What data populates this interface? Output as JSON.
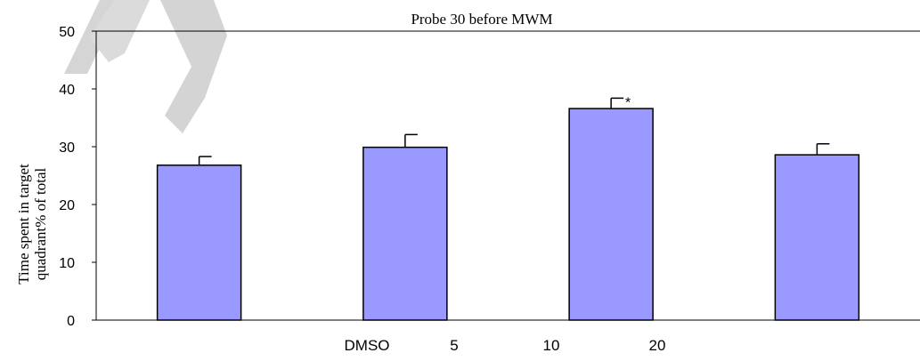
{
  "chart_data": {
    "type": "bar",
    "title": "Probe 30 before MWM",
    "ylabel_line1": "Time spent in target",
    "ylabel_line2": "quadrant% of total",
    "ylim": [
      0,
      50
    ],
    "yticks": [
      0,
      10,
      20,
      30,
      40,
      50
    ],
    "values": [
      26.8,
      29.9,
      36.6,
      28.6
    ],
    "errors": [
      1.5,
      2.2,
      1.8,
      1.9
    ],
    "significance": [
      "",
      "",
      "*",
      ""
    ],
    "x_tick_labels": [
      "DMSO",
      "5",
      "10",
      "20"
    ],
    "colors": {
      "bar_fill": "#9999ff",
      "bar_stroke": "#000000",
      "axis": "#000000"
    },
    "watermark_text": "AI"
  }
}
